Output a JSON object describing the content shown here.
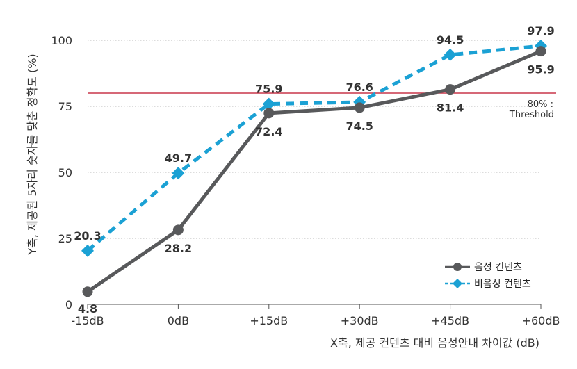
{
  "chart_data": {
    "type": "line",
    "categories": [
      "-15dB",
      "0dB",
      "+15dB",
      "+30dB",
      "+45dB",
      "+60dB"
    ],
    "series": [
      {
        "name": "음성 컨텐츠",
        "values": [
          4.8,
          28.2,
          72.4,
          74.5,
          81.4,
          95.9
        ],
        "color": "#58595b",
        "style": "solid",
        "marker": "circle"
      },
      {
        "name": "비음성 컨텐츠",
        "values": [
          20.3,
          49.7,
          75.9,
          76.6,
          94.5,
          97.9
        ],
        "color": "#1ba1d4",
        "style": "dashed",
        "marker": "diamond"
      }
    ],
    "xlabel": "X축, 제공 컨텐츠 대비 음성안내 차이값 (dB)",
    "ylabel": "Y축, 제공된 5자리 숫자를 맞춘 정확도 (%)",
    "ylim": [
      0,
      100
    ],
    "yticks": [
      0,
      25,
      50,
      75,
      100
    ],
    "grid": "horizontal dotted",
    "legend_position": "bottom-right",
    "threshold": {
      "value": 80,
      "label_line1": "80% :",
      "label_line2": "Threshold",
      "color": "#c8374a"
    }
  }
}
